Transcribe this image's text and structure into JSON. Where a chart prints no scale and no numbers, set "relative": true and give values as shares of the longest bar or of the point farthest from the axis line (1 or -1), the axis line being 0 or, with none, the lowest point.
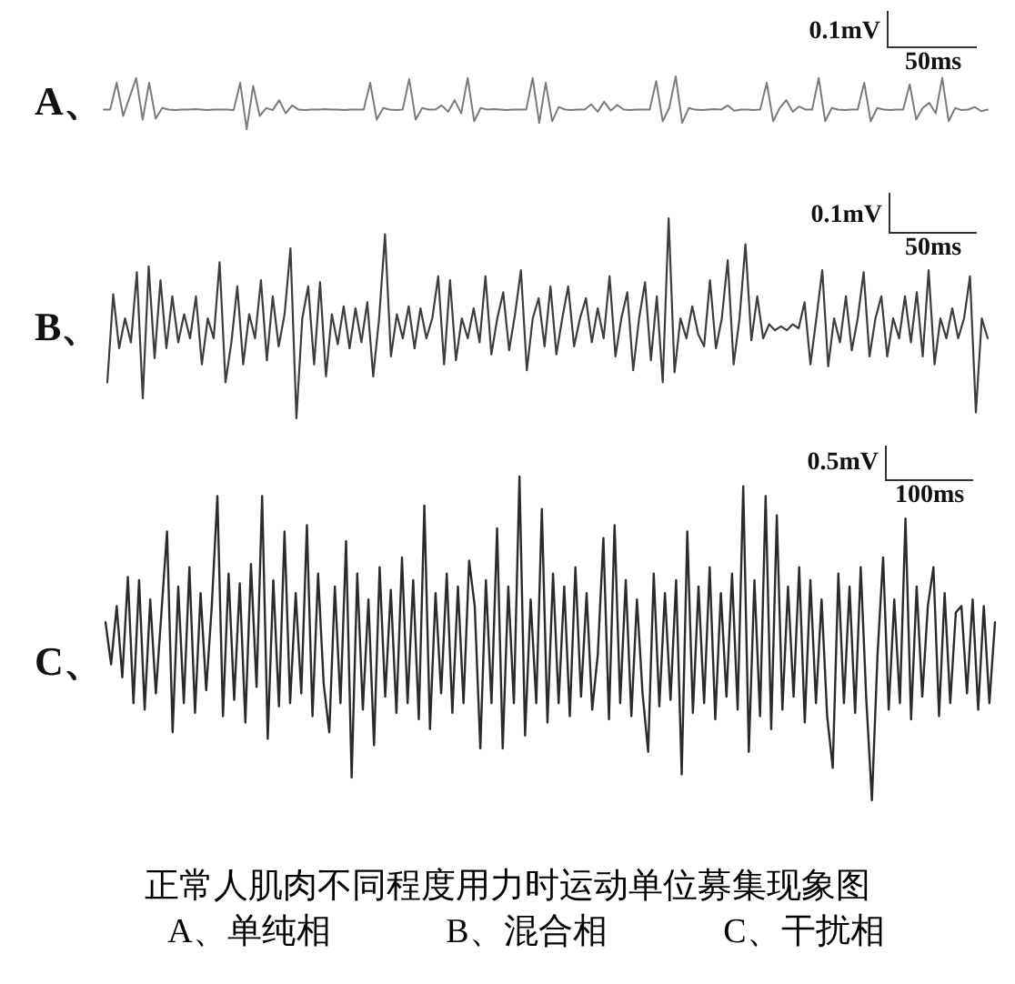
{
  "chart_data": [
    {
      "type": "line",
      "ylabel": "A、",
      "relative": true,
      "annotations": [
        "0.1mV",
        "50ms"
      ],
      "categories": [
        null,
        null,
        null,
        null,
        null,
        null,
        null,
        null,
        null,
        null,
        null,
        null,
        null,
        null,
        null,
        null,
        null,
        null,
        null,
        null,
        null,
        null,
        null,
        null,
        null,
        null,
        null,
        null,
        null,
        null,
        null,
        null,
        null,
        null,
        null,
        null,
        null,
        null,
        null,
        null,
        null,
        null,
        null,
        null,
        null,
        null,
        null,
        null,
        null,
        null,
        null,
        null,
        null,
        null,
        null,
        null,
        null,
        null,
        null,
        null,
        null,
        null,
        null,
        null,
        null,
        null,
        null,
        null,
        null,
        null,
        null,
        null,
        null,
        null,
        null,
        null,
        null,
        null,
        null,
        null,
        null,
        null,
        null,
        null,
        null,
        null,
        null,
        null,
        null,
        null,
        null,
        null,
        null,
        null,
        null,
        null,
        null,
        null,
        null,
        null,
        null,
        null,
        null,
        null,
        null,
        null,
        null,
        null,
        null,
        null,
        null,
        null,
        null,
        null,
        null,
        null,
        null,
        null,
        null,
        null,
        null,
        null,
        null,
        null,
        null,
        null,
        null,
        null,
        null,
        null,
        null,
        null,
        null,
        null,
        null,
        null,
        null
      ],
      "series": [
        {
          "color": "#7b7b7b",
          "values": [
            0.37,
            0.37,
            0.88,
            0.25,
            0.61,
            0.97,
            0.18,
            0.88,
            0.2,
            0.4,
            0.37,
            0.36,
            0.37,
            0.37,
            0.38,
            0.37,
            0.36,
            0.37,
            0.37,
            0.37,
            0.36,
            0.88,
            0.0,
            0.82,
            0.25,
            0.4,
            0.36,
            0.55,
            0.3,
            0.45,
            0.37,
            0.36,
            0.37,
            0.37,
            0.38,
            0.37,
            0.37,
            0.36,
            0.37,
            0.37,
            0.37,
            0.88,
            0.18,
            0.4,
            0.37,
            0.36,
            0.37,
            0.95,
            0.18,
            0.4,
            0.37,
            0.37,
            0.45,
            0.33,
            0.55,
            0.3,
            0.97,
            0.15,
            0.4,
            0.37,
            0.38,
            0.37,
            0.36,
            0.37,
            0.37,
            0.37,
            0.97,
            0.12,
            0.88,
            0.15,
            0.42,
            0.37,
            0.36,
            0.37,
            0.37,
            0.47,
            0.33,
            0.52,
            0.35,
            0.46,
            0.37,
            0.36,
            0.37,
            0.37,
            0.37,
            0.91,
            0.15,
            0.4,
            1.0,
            0.12,
            0.4,
            0.37,
            0.36,
            0.37,
            0.38,
            0.37,
            0.45,
            0.35,
            0.37,
            0.37,
            0.36,
            0.37,
            0.88,
            0.15,
            0.4,
            0.55,
            0.33,
            0.43,
            0.37,
            0.37,
            0.97,
            0.15,
            0.4,
            0.37,
            0.36,
            0.37,
            0.37,
            0.88,
            0.15,
            0.4,
            0.37,
            0.36,
            0.37,
            0.37,
            0.85,
            0.18,
            0.4,
            0.5,
            0.3,
            0.97,
            0.15,
            0.4,
            0.36,
            0.37,
            0.42,
            0.34,
            0.37
          ]
        }
      ]
    },
    {
      "type": "line",
      "ylabel": "B、",
      "relative": true,
      "annotations": [
        "0.1mV",
        "50ms"
      ],
      "categories": [
        null,
        null,
        null,
        null,
        null,
        null,
        null,
        null,
        null,
        null,
        null,
        null,
        null,
        null,
        null,
        null,
        null,
        null,
        null,
        null,
        null,
        null,
        null,
        null,
        null,
        null,
        null,
        null,
        null,
        null,
        null,
        null,
        null,
        null,
        null,
        null,
        null,
        null,
        null,
        null,
        null,
        null,
        null,
        null,
        null,
        null,
        null,
        null,
        null,
        null,
        null,
        null,
        null,
        null,
        null,
        null,
        null,
        null,
        null,
        null,
        null,
        null,
        null,
        null,
        null,
        null,
        null,
        null,
        null,
        null,
        null,
        null,
        null,
        null,
        null,
        null,
        null,
        null,
        null,
        null,
        null,
        null,
        null,
        null,
        null,
        null,
        null,
        null,
        null,
        null,
        null,
        null,
        null,
        null,
        null,
        null,
        null,
        null,
        null,
        null,
        null,
        null,
        null,
        null,
        null,
        null,
        null,
        null,
        null,
        null,
        null,
        null,
        null,
        null,
        null,
        null,
        null,
        null,
        null,
        null,
        null,
        null,
        null,
        null,
        null,
        null,
        null,
        null,
        null,
        null,
        null,
        null,
        null,
        null,
        null,
        null,
        null,
        null,
        null,
        null,
        null,
        null,
        null,
        null,
        null,
        null,
        null,
        null,
        null,
        null
      ],
      "series": [
        {
          "color": "#3d3d3d",
          "values": [
            0.18,
            0.62,
            0.35,
            0.5,
            0.38,
            0.73,
            0.1,
            0.76,
            0.3,
            0.69,
            0.35,
            0.61,
            0.38,
            0.52,
            0.4,
            0.61,
            0.27,
            0.5,
            0.4,
            0.78,
            0.18,
            0.38,
            0.66,
            0.27,
            0.52,
            0.4,
            0.69,
            0.29,
            0.61,
            0.36,
            0.52,
            0.85,
            0.0,
            0.5,
            0.66,
            0.27,
            0.68,
            0.21,
            0.52,
            0.37,
            0.56,
            0.35,
            0.55,
            0.38,
            0.58,
            0.21,
            0.5,
            0.92,
            0.31,
            0.52,
            0.4,
            0.56,
            0.35,
            0.55,
            0.4,
            0.5,
            0.71,
            0.27,
            0.69,
            0.29,
            0.5,
            0.4,
            0.55,
            0.38,
            0.71,
            0.32,
            0.5,
            0.63,
            0.34,
            0.52,
            0.74,
            0.24,
            0.5,
            0.6,
            0.36,
            0.66,
            0.32,
            0.5,
            0.66,
            0.36,
            0.5,
            0.6,
            0.38,
            0.55,
            0.4,
            0.71,
            0.31,
            0.5,
            0.63,
            0.24,
            0.5,
            0.68,
            0.29,
            0.61,
            0.18,
            1.0,
            0.23,
            0.5,
            0.4,
            0.56,
            0.42,
            0.36,
            0.69,
            0.35,
            0.5,
            0.79,
            0.27,
            0.5,
            0.87,
            0.39,
            0.61,
            0.4,
            0.47,
            0.44,
            0.46,
            0.44,
            0.47,
            0.45,
            0.58,
            0.27,
            0.5,
            0.74,
            0.26,
            0.5,
            0.38,
            0.61,
            0.34,
            0.5,
            0.73,
            0.31,
            0.5,
            0.61,
            0.31,
            0.5,
            0.4,
            0.61,
            0.38,
            0.63,
            0.31,
            0.74,
            0.27,
            0.5,
            0.4,
            0.55,
            0.4,
            0.5,
            0.71,
            0.03,
            0.5,
            0.4
          ]
        }
      ]
    },
    {
      "type": "line",
      "ylabel": "C、",
      "relative": true,
      "annotations": [
        "0.5mV",
        "100ms",
        "正常人肌肉不同程度用力时运动单位募集现象图",
        "A、单纯相",
        "B、混合相",
        "C、干扰相"
      ],
      "categories": [
        null,
        null,
        null,
        null,
        null,
        null,
        null,
        null,
        null,
        null,
        null,
        null,
        null,
        null,
        null,
        null,
        null,
        null,
        null,
        null,
        null,
        null,
        null,
        null,
        null,
        null,
        null,
        null,
        null,
        null,
        null,
        null,
        null,
        null,
        null,
        null,
        null,
        null,
        null,
        null,
        null,
        null,
        null,
        null,
        null,
        null,
        null,
        null,
        null,
        null,
        null,
        null,
        null,
        null,
        null,
        null,
        null,
        null,
        null,
        null,
        null,
        null,
        null,
        null,
        null,
        null,
        null,
        null,
        null,
        null,
        null,
        null,
        null,
        null,
        null,
        null,
        null,
        null,
        null,
        null,
        null,
        null,
        null,
        null,
        null,
        null,
        null,
        null,
        null,
        null,
        null,
        null,
        null,
        null,
        null,
        null,
        null,
        null,
        null,
        null,
        null,
        null,
        null,
        null,
        null,
        null,
        null,
        null,
        null,
        null,
        null,
        null,
        null,
        null,
        null,
        null,
        null,
        null,
        null,
        null,
        null,
        null,
        null,
        null,
        null,
        null,
        null,
        null,
        null,
        null,
        null,
        null,
        null,
        null,
        null,
        null,
        null,
        null,
        null,
        null,
        null,
        null,
        null,
        null,
        null,
        null,
        null,
        null,
        null,
        null,
        null,
        null,
        null,
        null,
        null,
        null,
        null,
        null,
        null,
        null
      ],
      "series": [
        {
          "color": "#2b2b2b",
          "values": [
            0.55,
            0.42,
            0.6,
            0.38,
            0.69,
            0.3,
            0.68,
            0.28,
            0.62,
            0.33,
            0.58,
            0.83,
            0.21,
            0.66,
            0.3,
            0.72,
            0.27,
            0.64,
            0.34,
            0.6,
            0.94,
            0.26,
            0.7,
            0.31,
            0.67,
            0.24,
            0.73,
            0.35,
            0.94,
            0.19,
            0.68,
            0.29,
            0.83,
            0.3,
            0.64,
            0.33,
            0.85,
            0.26,
            0.7,
            0.36,
            0.21,
            0.66,
            0.3,
            0.8,
            0.07,
            0.7,
            0.28,
            0.62,
            0.17,
            0.72,
            0.32,
            0.65,
            0.27,
            0.75,
            0.3,
            0.68,
            0.25,
            0.91,
            0.22,
            0.64,
            0.33,
            0.7,
            0.27,
            0.66,
            0.3,
            0.74,
            0.6,
            0.16,
            0.68,
            0.3,
            0.84,
            0.16,
            0.66,
            0.3,
            1.0,
            0.2,
            0.62,
            0.3,
            0.9,
            0.24,
            0.7,
            0.3,
            0.66,
            0.26,
            0.72,
            0.32,
            0.64,
            0.28,
            0.45,
            0.81,
            0.25,
            0.85,
            0.3,
            0.68,
            0.26,
            0.62,
            0.33,
            0.15,
            0.7,
            0.29,
            0.64,
            0.31,
            0.68,
            0.08,
            0.83,
            0.27,
            0.66,
            0.3,
            0.72,
            0.25,
            0.64,
            0.32,
            0.7,
            0.28,
            0.97,
            0.15,
            0.68,
            0.26,
            0.94,
            0.22,
            0.88,
            0.28,
            0.66,
            0.32,
            0.72,
            0.24,
            0.68,
            0.3,
            0.62,
            0.26,
            0.1,
            0.7,
            0.3,
            0.66,
            0.27,
            0.72,
            0.31,
            0.0,
            0.45,
            0.75,
            0.28,
            0.62,
            0.3,
            0.87,
            0.25,
            0.66,
            0.32,
            0.6,
            0.72,
            0.26,
            0.64,
            0.3,
            0.58,
            0.6,
            0.33,
            0.62,
            0.28,
            0.6,
            0.3,
            0.55
          ]
        }
      ]
    }
  ]
}
